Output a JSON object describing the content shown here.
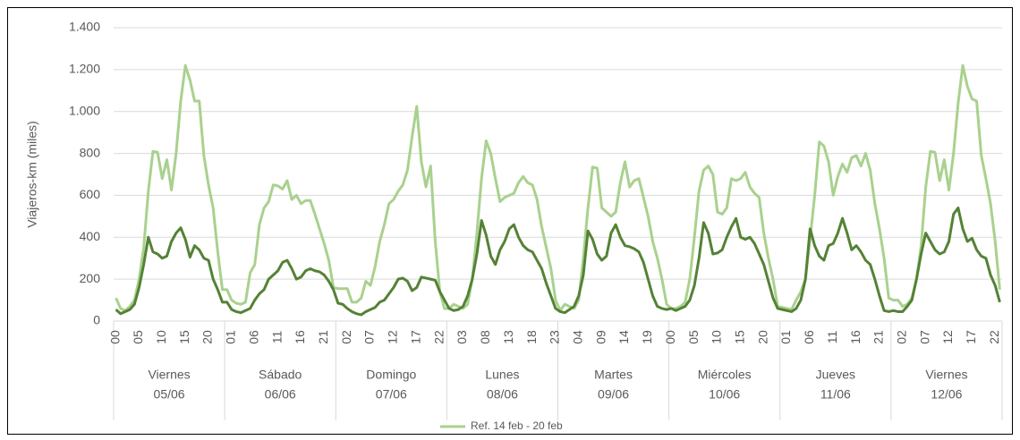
{
  "chart_data": {
    "type": "line",
    "y_label": "Viajeros-km (miles)",
    "ylim": [
      0,
      1400
    ],
    "yticks": [
      0,
      200,
      400,
      600,
      800,
      {
        "value": 1000,
        "label": "1.000"
      },
      {
        "value": 1200,
        "label": "1.200"
      },
      {
        "value": 1400,
        "label": "1.400"
      }
    ],
    "grid": true,
    "legend": "bottom",
    "groups": [
      {
        "day": "Viernes",
        "date": "05/06"
      },
      {
        "day": "Sábado",
        "date": "06/06"
      },
      {
        "day": "Domingo",
        "date": "07/06"
      },
      {
        "day": "Lunes",
        "date": "08/06"
      },
      {
        "day": "Martes",
        "date": "09/06"
      },
      {
        "day": "Miércoles",
        "date": "10/06"
      },
      {
        "day": "Jueves",
        "date": "11/06"
      },
      {
        "day": "Viernes",
        "date": "12/06"
      }
    ],
    "categories": [
      "00",
      null,
      null,
      null,
      null,
      "05",
      null,
      null,
      null,
      null,
      "10",
      null,
      null,
      null,
      null,
      "15",
      null,
      null,
      null,
      null,
      "20",
      null,
      null,
      null,
      null,
      "01",
      null,
      null,
      null,
      null,
      "06",
      null,
      null,
      null,
      null,
      "11",
      null,
      null,
      null,
      null,
      "16",
      null,
      null,
      null,
      null,
      "21",
      null,
      null,
      null,
      null,
      "02",
      null,
      null,
      null,
      null,
      "07",
      null,
      null,
      null,
      null,
      "12",
      null,
      null,
      null,
      null,
      "17",
      null,
      null,
      null,
      null,
      "22",
      null,
      null,
      null,
      null,
      "03",
      null,
      null,
      null,
      null,
      "08",
      null,
      null,
      null,
      null,
      "13",
      null,
      null,
      null,
      null,
      "18",
      null,
      null,
      null,
      null,
      "23",
      null,
      null,
      null,
      null,
      "04",
      null,
      null,
      null,
      null,
      "09",
      null,
      null,
      null,
      null,
      "14",
      null,
      null,
      null,
      null,
      "19",
      null,
      null,
      null,
      null,
      "00",
      null,
      null,
      null,
      null,
      "05",
      null,
      null,
      null,
      null,
      "10",
      null,
      null,
      null,
      null,
      "15",
      null,
      null,
      null,
      null,
      "20",
      null,
      null,
      null,
      null,
      "01",
      null,
      null,
      null,
      null,
      "06",
      null,
      null,
      null,
      null,
      "11",
      null,
      null,
      null,
      null,
      "16",
      null,
      null,
      null,
      null,
      "21",
      null,
      null,
      null,
      null,
      "02",
      null,
      null,
      null,
      null,
      "07",
      null,
      null,
      null,
      null,
      "12",
      null,
      null,
      null,
      null,
      "17",
      null,
      null,
      null,
      null,
      "22",
      null
    ],
    "series": [
      {
        "name": "Ref. 14 feb - 20 feb",
        "color": "#a9d18e",
        "values": [
          110,
          60,
          50,
          70,
          100,
          200,
          350,
          620,
          810,
          805,
          680,
          770,
          625,
          800,
          1050,
          1220,
          1150,
          1050,
          1050,
          790,
          650,
          540,
          330,
          150,
          150,
          100,
          85,
          80,
          90,
          230,
          270,
          460,
          540,
          570,
          650,
          645,
          630,
          670,
          580,
          600,
          560,
          575,
          575,
          510,
          440,
          370,
          290,
          160,
          155,
          155,
          155,
          90,
          90,
          110,
          190,
          170,
          260,
          380,
          460,
          560,
          580,
          620,
          650,
          720,
          880,
          1025,
          760,
          640,
          740,
          380,
          140,
          60,
          60,
          80,
          70,
          60,
          80,
          200,
          420,
          680,
          860,
          800,
          680,
          570,
          590,
          600,
          610,
          660,
          690,
          660,
          650,
          580,
          450,
          350,
          250,
          100,
          50,
          80,
          70,
          60,
          100,
          300,
          540,
          735,
          730,
          540,
          520,
          500,
          520,
          660,
          760,
          640,
          670,
          680,
          590,
          500,
          380,
          300,
          200,
          80,
          60,
          60,
          70,
          90,
          200,
          400,
          620,
          720,
          740,
          700,
          520,
          510,
          540,
          680,
          670,
          680,
          710,
          640,
          610,
          590,
          420,
          300,
          200,
          70,
          65,
          60,
          55,
          100,
          140,
          200,
          390,
          600,
          855,
          835,
          760,
          600,
          690,
          750,
          710,
          780,
          790,
          740,
          800,
          720,
          560,
          440,
          300,
          110,
          100,
          100,
          70,
          80,
          110,
          200,
          360,
          640,
          810,
          805,
          670,
          770,
          625,
          800,
          1040,
          1220,
          1120,
          1060,
          1050,
          790,
          680,
          560,
          380,
          150
        ]
      },
      {
        "color": "#548235",
        "values": [
          55,
          35,
          45,
          55,
          80,
          160,
          270,
          400,
          330,
          320,
          300,
          310,
          380,
          420,
          445,
          390,
          305,
          360,
          340,
          300,
          290,
          200,
          150,
          90,
          90,
          55,
          45,
          40,
          50,
          60,
          100,
          130,
          150,
          200,
          220,
          240,
          280,
          290,
          250,
          200,
          210,
          240,
          250,
          240,
          235,
          220,
          190,
          150,
          85,
          80,
          60,
          45,
          35,
          30,
          45,
          55,
          65,
          90,
          100,
          130,
          160,
          200,
          205,
          190,
          145,
          160,
          210,
          205,
          200,
          195,
          140,
          100,
          60,
          50,
          55,
          70,
          120,
          200,
          320,
          480,
          410,
          310,
          270,
          340,
          380,
          440,
          460,
          400,
          360,
          340,
          330,
          290,
          250,
          180,
          120,
          60,
          45,
          40,
          55,
          70,
          120,
          220,
          430,
          390,
          320,
          290,
          310,
          420,
          460,
          400,
          360,
          355,
          345,
          330,
          280,
          200,
          120,
          70,
          60,
          55,
          60,
          50,
          60,
          70,
          100,
          170,
          300,
          470,
          420,
          320,
          325,
          340,
          400,
          450,
          490,
          400,
          390,
          400,
          370,
          320,
          270,
          190,
          110,
          60,
          55,
          50,
          45,
          60,
          100,
          200,
          440,
          360,
          310,
          290,
          360,
          370,
          420,
          490,
          420,
          340,
          360,
          330,
          290,
          270,
          200,
          120,
          50,
          45,
          50,
          45,
          45,
          70,
          100,
          200,
          320,
          420,
          380,
          340,
          320,
          330,
          380,
          510,
          540,
          440,
          380,
          395,
          340,
          310,
          300,
          220,
          170,
          90
        ]
      }
    ]
  }
}
